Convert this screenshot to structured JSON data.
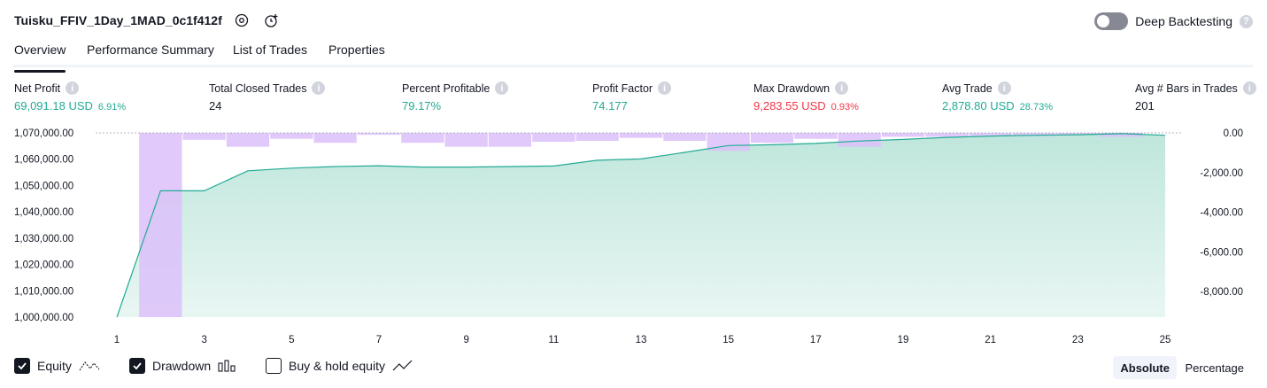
{
  "header": {
    "title": "Tuisku_FFIV_1Day_1MAD_0c1f412f",
    "icons": [
      "settings-icon",
      "alarm-add-icon"
    ],
    "deep_backtesting_label": "Deep Backtesting",
    "deep_backtesting_enabled": false
  },
  "tabs": [
    {
      "label": "Overview",
      "active": true
    },
    {
      "label": "Performance Summary",
      "active": false
    },
    {
      "label": "List of Trades",
      "active": false
    },
    {
      "label": "Properties",
      "active": false
    }
  ],
  "stats": {
    "net_profit": {
      "label": "Net Profit",
      "value": "69,091.18 USD",
      "pct": "6.91%"
    },
    "total_closed_trades": {
      "label": "Total Closed Trades",
      "value": "24"
    },
    "percent_profitable": {
      "label": "Percent Profitable",
      "value": "79.17%"
    },
    "profit_factor": {
      "label": "Profit Factor",
      "value": "74.177"
    },
    "max_drawdown": {
      "label": "Max Drawdown",
      "value": "9,283.55 USD",
      "pct": "0.93%"
    },
    "avg_trade": {
      "label": "Avg Trade",
      "value": "2,878.80 USD",
      "pct": "28.73%"
    },
    "avg_bars": {
      "label": "Avg # Bars in Trades",
      "value": "201"
    }
  },
  "colors": {
    "equity_line": "#22ab94",
    "equity_fill": "#bfe6dc",
    "drawdown_bar": "#dcc1fa",
    "positive": "#22ab94",
    "negative": "#f23645"
  },
  "chart_data": {
    "type": "area",
    "x": [
      1,
      2,
      3,
      4,
      5,
      6,
      7,
      8,
      9,
      10,
      11,
      12,
      13,
      14,
      15,
      16,
      17,
      18,
      19,
      20,
      21,
      22,
      23,
      24,
      25
    ],
    "x_ticks": [
      "1",
      "3",
      "5",
      "7",
      "9",
      "11",
      "13",
      "15",
      "17",
      "19",
      "21",
      "23",
      "25"
    ],
    "y_left_ticks": [
      "1,070,000.00",
      "1,060,000.00",
      "1,050,000.00",
      "1,040,000.00",
      "1,030,000.00",
      "1,020,000.00",
      "1,010,000.00",
      "1,000,000.00"
    ],
    "y_right_ticks": [
      "0.00",
      "-2,000.00",
      "-4,000.00",
      "-6,000.00",
      "-8,000.00"
    ],
    "ylim_left": [
      1000000,
      1070000
    ],
    "ylim_right": [
      -9283.55,
      0
    ],
    "series": [
      {
        "name": "Equity",
        "axis": "left",
        "values": [
          1000000,
          1048000,
          1048000,
          1055600,
          1056600,
          1057200,
          1057500,
          1057000,
          1057000,
          1057200,
          1057400,
          1059600,
          1060100,
          1062600,
          1065200,
          1065500,
          1066000,
          1066900,
          1067500,
          1068300,
          1068800,
          1069100,
          1069300,
          1069700,
          1069100
        ]
      },
      {
        "name": "Drawdown",
        "axis": "right",
        "values": [
          0,
          -9283.55,
          -350,
          -700,
          -300,
          -500,
          -100,
          -500,
          -700,
          -700,
          -450,
          -400,
          -250,
          -400,
          -900,
          -500,
          -300,
          -700,
          -200,
          -200,
          -150,
          -150,
          -100,
          -200,
          0
        ]
      }
    ],
    "legend": [
      {
        "label": "Equity",
        "checked": true
      },
      {
        "label": "Drawdown",
        "checked": true
      },
      {
        "label": "Buy & hold equity",
        "checked": false
      }
    ],
    "scale_modes": [
      {
        "label": "Absolute",
        "active": true
      },
      {
        "label": "Percentage",
        "active": false
      }
    ]
  }
}
